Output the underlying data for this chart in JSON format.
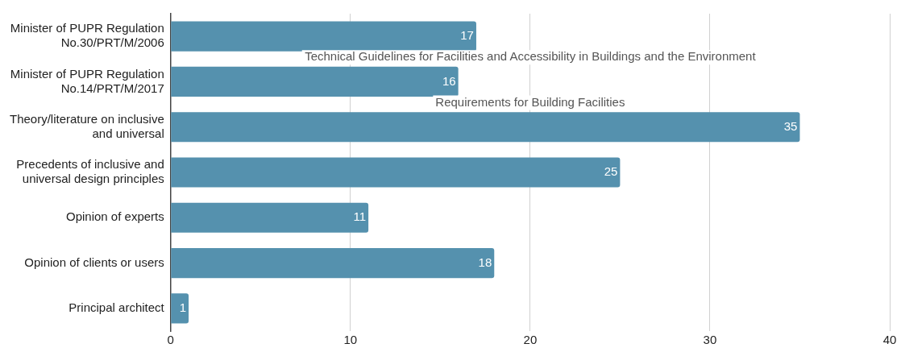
{
  "chart_data": {
    "type": "bar",
    "orientation": "horizontal",
    "categories": [
      "Minister of PUPR Regulation No.30/PRT/M/2006",
      "Minister of PUPR Regulation No.14/PRT/M/2017",
      "Theory/literature on inclusive and universal",
      "Precedents of inclusive and universal design principles",
      "Opinion of experts",
      "Opinion of clients or users",
      "Principal architect"
    ],
    "values": [
      17,
      16,
      35,
      25,
      11,
      18,
      1
    ],
    "color": "#5591ae",
    "xlim": [
      0,
      40
    ],
    "xticks": [
      0,
      10,
      20,
      30,
      40
    ],
    "grid": "x",
    "data_labels": true,
    "legend": false,
    "annotations": [
      "Technical Guidelines for Facilities and Accessibility in Buildings and the Environment",
      "Requirements for Building Facilities"
    ]
  }
}
